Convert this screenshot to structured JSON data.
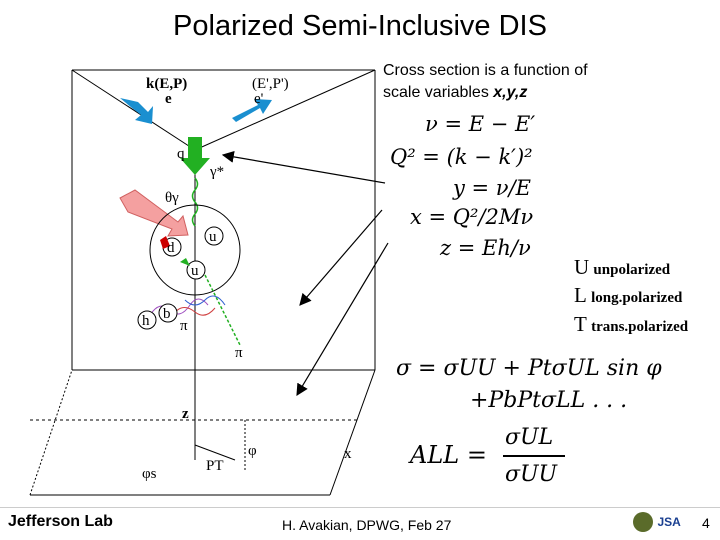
{
  "slide": {
    "title": "Polarized Semi-Inclusive DIS",
    "subtitle_line1": "Cross section is a function of",
    "subtitle_line2_prefix": "scale variables ",
    "subtitle_vars": "x,y,z",
    "footer": "H. Avakian, DPWG, Feb 27",
    "page_number": "4",
    "logo_text": "Jefferson Lab",
    "lab_icon_text": "JSA"
  },
  "diagram": {
    "labels": {
      "incoming": "k(E,P)",
      "incoming_e": "e",
      "outgoing": "(E',P')",
      "outgoing_e": "e'",
      "q": "q",
      "gamma": "γ*",
      "theta": "θγ",
      "u1": "u",
      "d": "d",
      "u2": "u",
      "h": "h",
      "b": "b",
      "pi1": "π",
      "pi2": "π",
      "z": "z",
      "x": "x",
      "phi": "φ",
      "phi_s": "φs",
      "pt": "PT"
    }
  },
  "equations": {
    "nu": "ν = E − E′",
    "q2": "Q² = (k − k′)²",
    "y": "y = ν/E",
    "x": "x = Q²/2Mν",
    "z": "z = Eh/ν"
  },
  "legend": [
    {
      "letter": "U",
      "text": "unpolarized"
    },
    {
      "letter": "L",
      "text": "long.polarized"
    },
    {
      "letter": "T",
      "text": "trans.polarized"
    }
  ],
  "cross_section": {
    "line1": "σ = σUU + PtσUL sin φ",
    "line2": "+PbPtσLL . . .",
    "all_lhs": "ALL =",
    "all_num": "σUL",
    "all_den": "σUU"
  },
  "colors": {
    "incoming_arrow": "#1a8fd0",
    "photon_arrow": "#22b022",
    "hadron_arrow": "#f08080",
    "quark_red": "#cc0000",
    "pb_blue": "#1a3fd0",
    "pt_red": "#cc2020",
    "ll_red": "#cc2020"
  }
}
